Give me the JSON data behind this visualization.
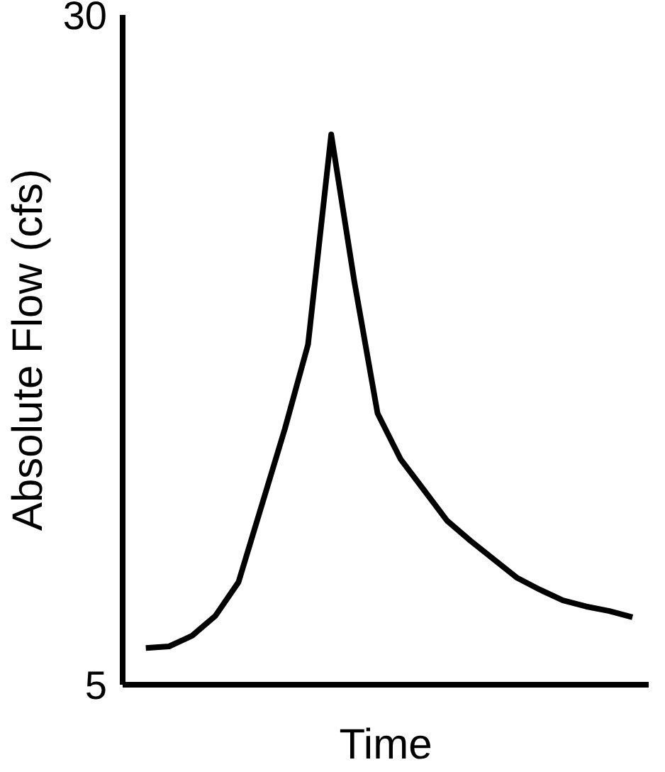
{
  "chart_data": {
    "type": "line",
    "xlabel": "Time",
    "ylabel": "Absolute Flow (cfs)",
    "categories": [
      null,
      null,
      null,
      null,
      null,
      null,
      null,
      null,
      null,
      null,
      null,
      null,
      null,
      null,
      null,
      null,
      null,
      null,
      null,
      null,
      null,
      null
    ],
    "series": [
      {
        "color": "#000000",
        "values": [
          6.37,
          6.43,
          6.83,
          7.57,
          8.83,
          11.69,
          14.55,
          17.7,
          25.54,
          20.04,
          15.13,
          13.41,
          12.27,
          11.12,
          10.38,
          9.69,
          9.0,
          8.55,
          8.15,
          7.92,
          7.75,
          7.52
        ]
      }
    ],
    "ylim": [
      5,
      30
    ],
    "yticks": [
      5,
      30
    ],
    "tick_labels": "y",
    "marker": "none",
    "line_style": "solid"
  }
}
